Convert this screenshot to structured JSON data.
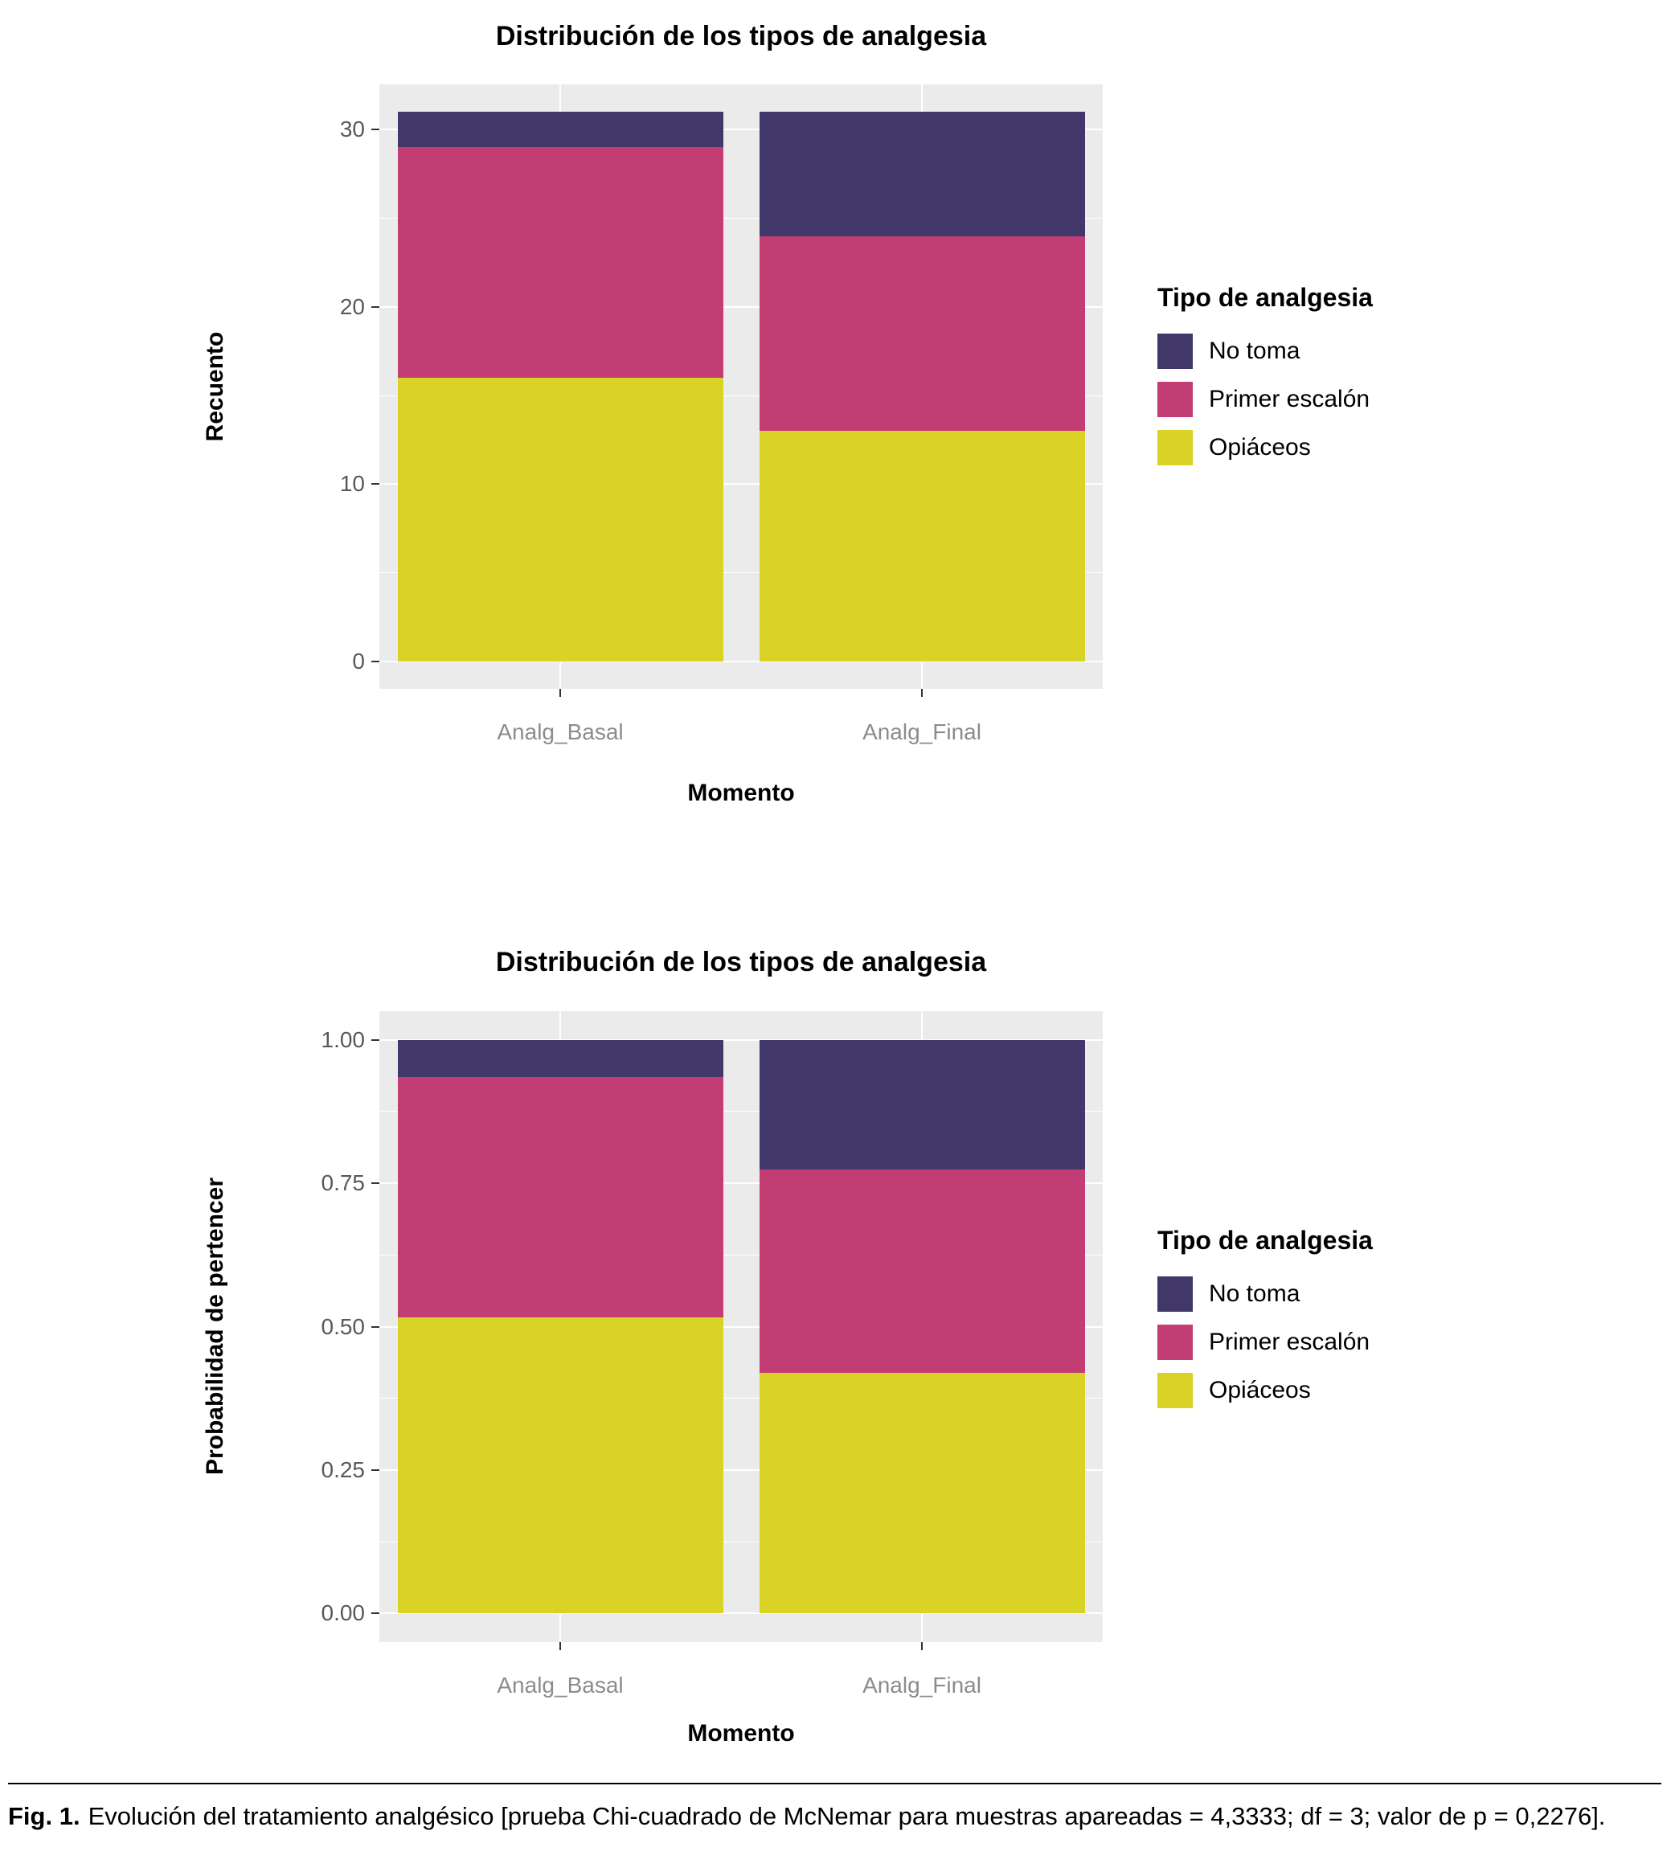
{
  "page": {
    "background": "#ffffff"
  },
  "figure": {
    "caption_prefix": "Fig. 1.",
    "caption_text": "Evolución del tratamiento analgésico [prueba Chi-cuadrado de McNemar para muestras apareadas = 4,3333; df = 3; valor de p = 0,2276]."
  },
  "colors": {
    "panel_background": "#ebebeb",
    "gridline": "#ffffff",
    "axis_text_y": "#595959",
    "axis_text_x": "#8c8c8c",
    "tick_mark": "#333333",
    "no_toma": "#413768",
    "primer_escalon": "#c13d73",
    "opiaceos": "#d9d326"
  },
  "chart_data": [
    {
      "type": "bar",
      "stacked": true,
      "title": "Distribución de los tipos de analgesia",
      "xlabel": "Momento",
      "ylabel": "Recuento",
      "categories": [
        "Analg_Basal",
        "Analg_Final"
      ],
      "series": [
        {
          "name": "Opiáceos",
          "color": "#d9d326",
          "values": [
            16,
            13
          ]
        },
        {
          "name": "Primer escalón",
          "color": "#c13d73",
          "values": [
            13,
            11
          ]
        },
        {
          "name": "No toma",
          "color": "#413768",
          "values": [
            2,
            7
          ]
        }
      ],
      "totals": [
        31,
        31
      ],
      "ylim": [
        0,
        31
      ],
      "yticks": [
        0,
        10,
        20,
        30
      ],
      "ytick_labels": [
        "0",
        "10",
        "20",
        "30"
      ],
      "expand": 0.05,
      "grid": true,
      "legend_position": "right",
      "legend_title": "Tipo de analgesia",
      "legend_items": [
        {
          "label": "No toma",
          "color": "#413768"
        },
        {
          "label": "Primer escalón",
          "color": "#c13d73"
        },
        {
          "label": "Opiáceos",
          "color": "#d9d326"
        }
      ]
    },
    {
      "type": "bar",
      "stacked": true,
      "title": "Distribución de los tipos de analgesia",
      "xlabel": "Momento",
      "ylabel": "Probabilidad de pertencer",
      "categories": [
        "Analg_Basal",
        "Analg_Final"
      ],
      "series": [
        {
          "name": "Opiáceos",
          "color": "#d9d326",
          "values": [
            0.516,
            0.419
          ]
        },
        {
          "name": "Primer escalón",
          "color": "#c13d73",
          "values": [
            0.419,
            0.355
          ]
        },
        {
          "name": "No toma",
          "color": "#413768",
          "values": [
            0.065,
            0.226
          ]
        }
      ],
      "ylim": [
        0,
        1
      ],
      "yticks": [
        0,
        0.25,
        0.5,
        0.75,
        1
      ],
      "ytick_labels": [
        "0.00",
        "0.25",
        "0.50",
        "0.75",
        "1.00"
      ],
      "expand": 0.05,
      "grid": true,
      "legend_position": "right",
      "legend_title": "Tipo de analgesia",
      "legend_items": [
        {
          "label": "No toma",
          "color": "#413768"
        },
        {
          "label": "Primer escalón",
          "color": "#c13d73"
        },
        {
          "label": "Opiáceos",
          "color": "#d9d326"
        }
      ]
    }
  ]
}
